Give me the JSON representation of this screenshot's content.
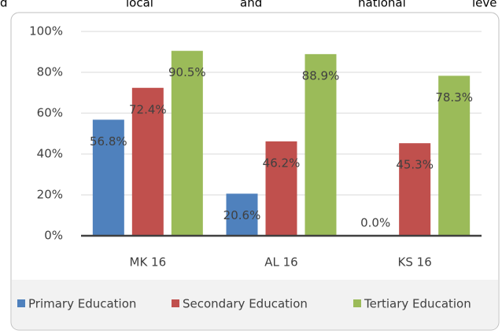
{
  "top_text": [
    "d",
    "local",
    "and",
    "national",
    "leve"
  ],
  "chart_data": {
    "type": "bar",
    "categories": [
      "MK 16",
      "AL 16",
      "KS 16"
    ],
    "series": [
      {
        "name": "Primary Education",
        "color": "#4f81bd",
        "values": [
          56.8,
          20.6,
          0.0
        ],
        "value_labels": [
          "56.8%",
          "20.6%",
          "0.0%"
        ]
      },
      {
        "name": "Secondary Education",
        "color": "#c0504d",
        "values": [
          72.4,
          46.2,
          45.3
        ],
        "value_labels": [
          "72.4%",
          "46.2%",
          "45.3%"
        ]
      },
      {
        "name": "Tertiary Education",
        "color": "#9bbb59",
        "values": [
          90.5,
          88.9,
          78.3
        ],
        "value_labels": [
          "90.5%",
          "88.9%",
          "78.3%"
        ]
      }
    ],
    "ylim": [
      0,
      100
    ],
    "yticks": [
      {
        "value": 0,
        "label": "0%"
      },
      {
        "value": 20,
        "label": "20%"
      },
      {
        "value": 40,
        "label": "40%"
      },
      {
        "value": 60,
        "label": "60%"
      },
      {
        "value": 80,
        "label": "80%"
      },
      {
        "value": 100,
        "label": "100%"
      }
    ],
    "grid": true,
    "legend": "bottom"
  }
}
